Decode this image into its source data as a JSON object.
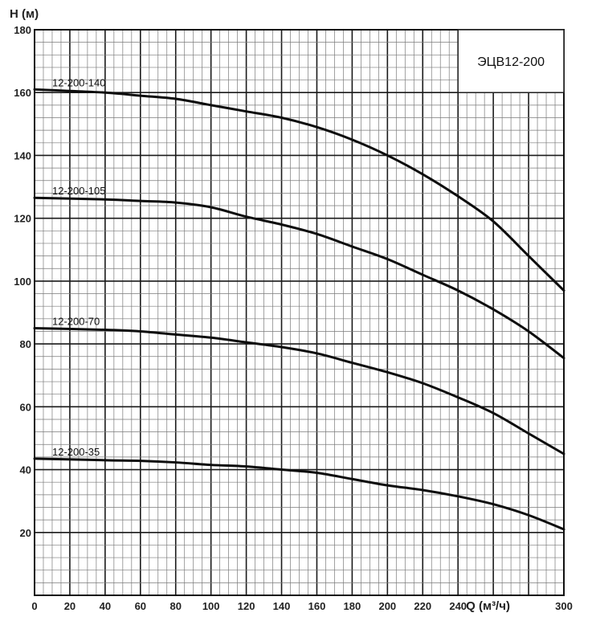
{
  "chart_data": {
    "type": "line",
    "title": "ЭЦВ12-200",
    "xlabel": "Q (м³/ч)",
    "ylabel": "H (м)",
    "xlim": [
      0,
      300
    ],
    "ylim": [
      0,
      180
    ],
    "x_ticks": [
      0,
      20,
      40,
      60,
      80,
      100,
      120,
      140,
      160,
      180,
      200,
      220,
      240,
      300
    ],
    "y_ticks": [
      20,
      40,
      60,
      80,
      100,
      120,
      140,
      160,
      180
    ],
    "grid": true,
    "series": [
      {
        "name": "12-200-140",
        "points": [
          [
            0,
            161
          ],
          [
            40,
            160
          ],
          [
            60,
            159
          ],
          [
            80,
            158
          ],
          [
            100,
            156
          ],
          [
            120,
            154
          ],
          [
            140,
            152
          ],
          [
            160,
            149
          ],
          [
            180,
            145
          ],
          [
            200,
            140
          ],
          [
            220,
            134
          ],
          [
            240,
            127
          ],
          [
            260,
            119
          ],
          [
            280,
            108
          ],
          [
            300,
            97
          ]
        ]
      },
      {
        "name": "12-200-105",
        "points": [
          [
            0,
            126.5
          ],
          [
            40,
            126
          ],
          [
            60,
            125.5
          ],
          [
            80,
            125
          ],
          [
            100,
            123.5
          ],
          [
            120,
            120.5
          ],
          [
            140,
            118
          ],
          [
            160,
            115
          ],
          [
            180,
            111
          ],
          [
            200,
            107
          ],
          [
            220,
            102
          ],
          [
            240,
            97
          ],
          [
            260,
            91
          ],
          [
            280,
            84
          ],
          [
            300,
            75.5
          ]
        ]
      },
      {
        "name": "12-200-70",
        "points": [
          [
            0,
            85
          ],
          [
            40,
            84.5
          ],
          [
            60,
            84
          ],
          [
            80,
            83
          ],
          [
            100,
            82
          ],
          [
            120,
            80.5
          ],
          [
            140,
            79
          ],
          [
            160,
            77
          ],
          [
            180,
            74
          ],
          [
            200,
            71
          ],
          [
            220,
            67.5
          ],
          [
            240,
            63
          ],
          [
            260,
            58
          ],
          [
            280,
            51.5
          ],
          [
            300,
            45
          ]
        ]
      },
      {
        "name": "12-200-35",
        "points": [
          [
            0,
            43.5
          ],
          [
            40,
            43
          ],
          [
            60,
            42.8
          ],
          [
            80,
            42.3
          ],
          [
            100,
            41.5
          ],
          [
            120,
            41
          ],
          [
            140,
            40
          ],
          [
            160,
            39
          ],
          [
            180,
            37
          ],
          [
            200,
            35
          ],
          [
            220,
            33.5
          ],
          [
            240,
            31.5
          ],
          [
            260,
            29
          ],
          [
            280,
            25.5
          ],
          [
            300,
            21
          ]
        ]
      }
    ]
  }
}
